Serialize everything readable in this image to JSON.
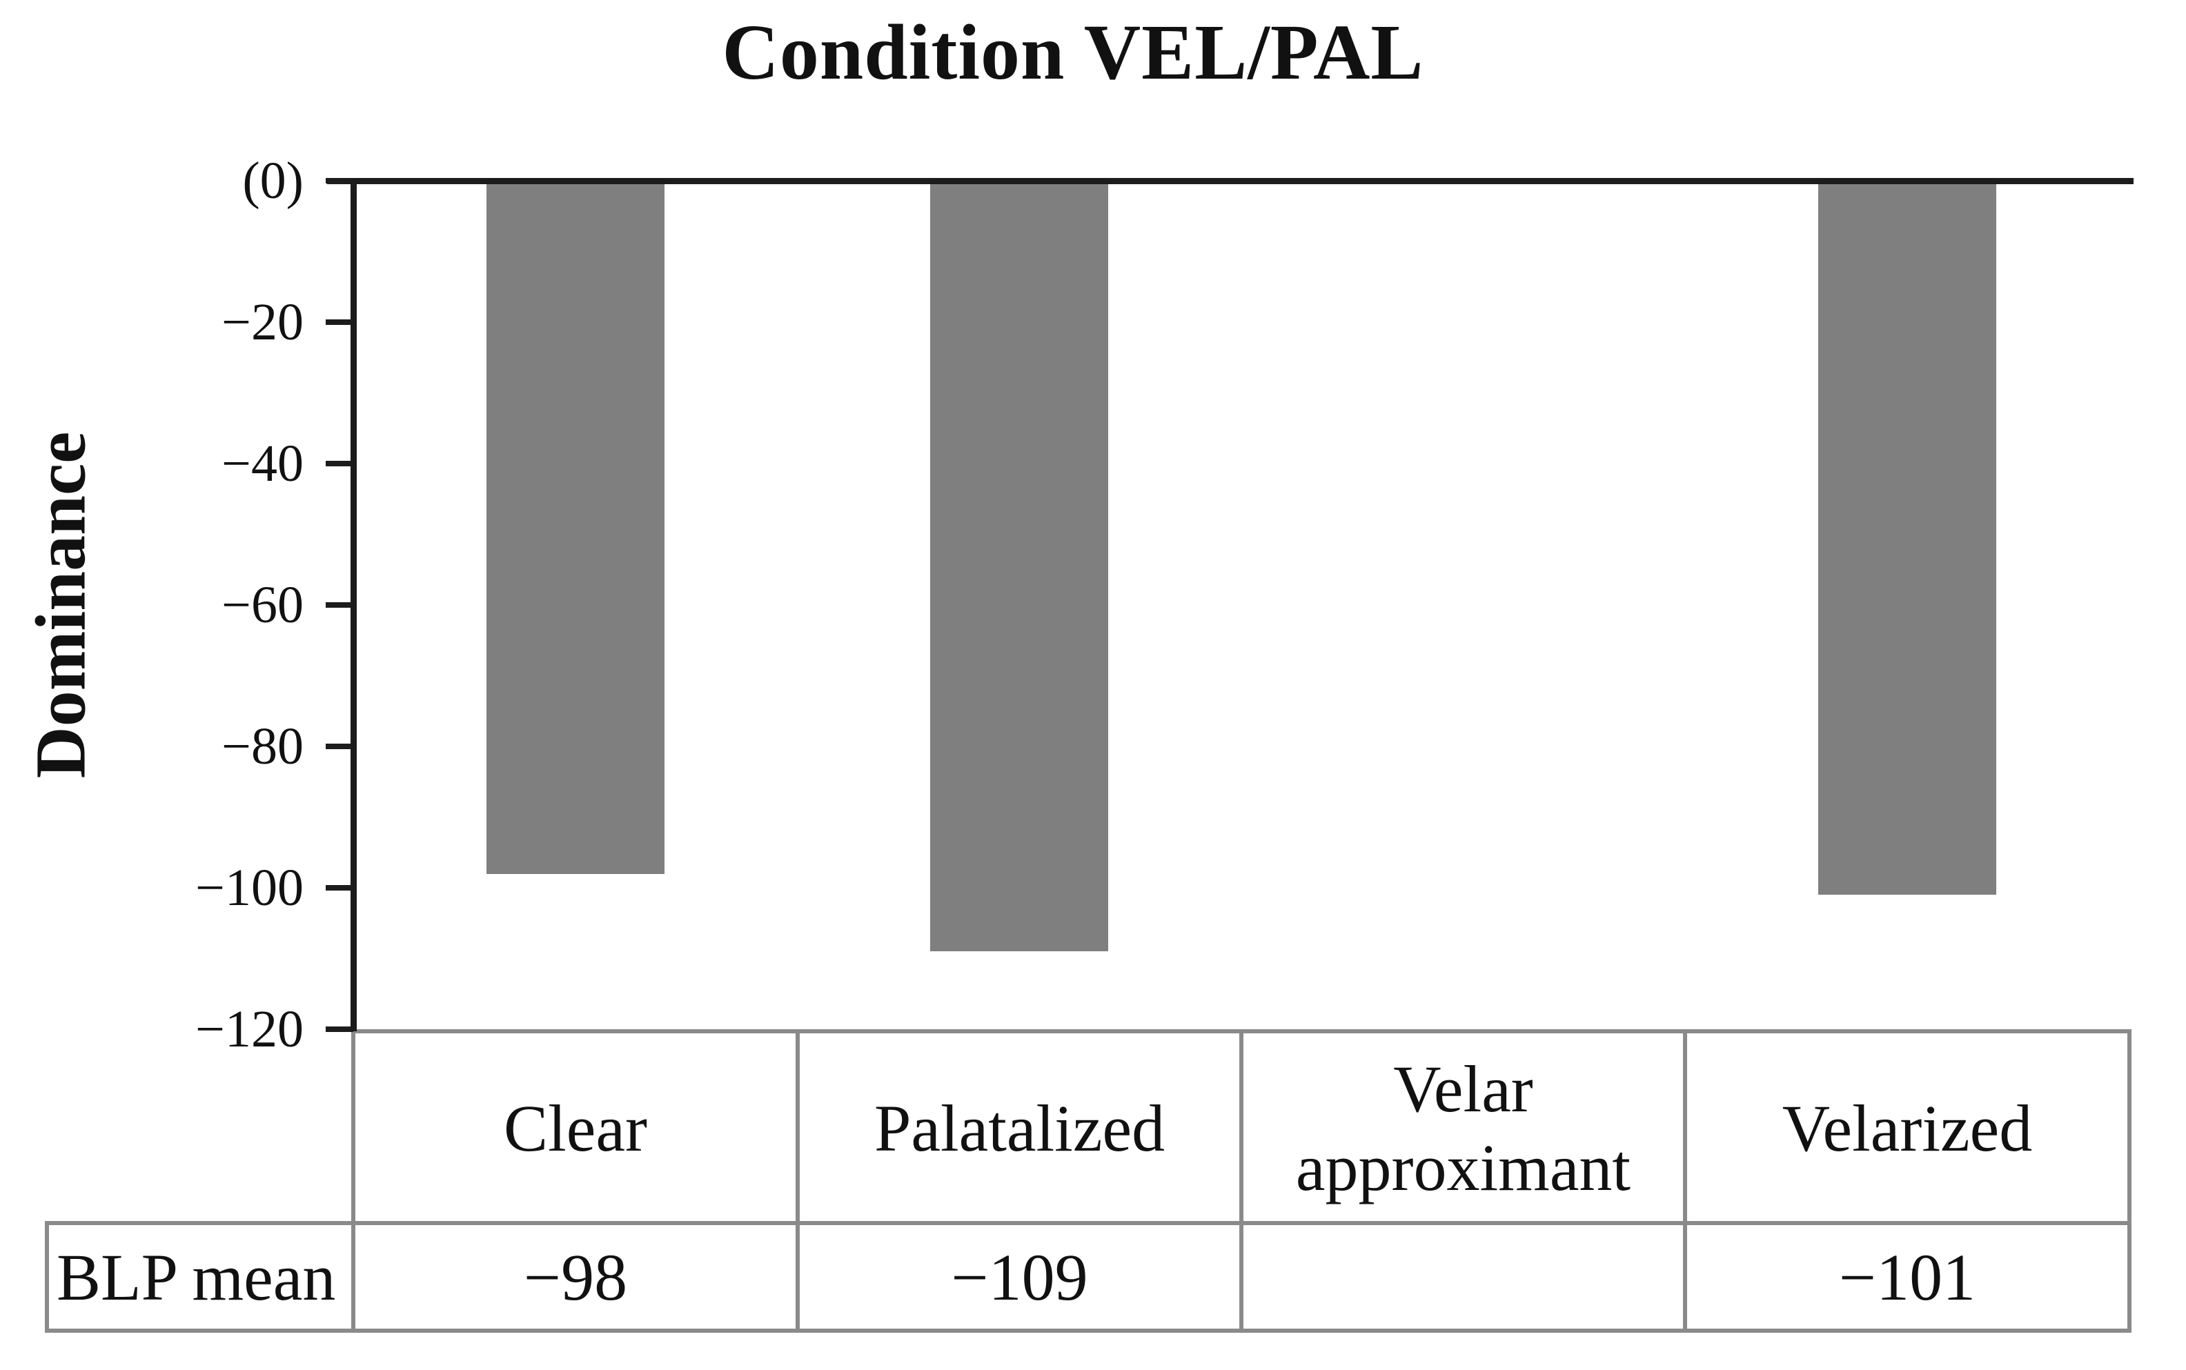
{
  "figure": {
    "title": "Condition VEL/PAL",
    "y_axis": {
      "label": "Dominance",
      "tick_labels": [
        "(0)",
        "−20",
        "−40",
        "−60",
        "−80",
        "−100",
        "−120"
      ]
    },
    "table": {
      "row_header": "BLP mean",
      "columns": [
        {
          "label": "Clear",
          "value": "−98"
        },
        {
          "label": "Palatalized",
          "value": "−109"
        },
        {
          "label": "Velar approximant",
          "value": ""
        },
        {
          "label": "Velarized",
          "value": "−101"
        }
      ]
    }
  },
  "chart_data": {
    "type": "bar",
    "title": "Condition VEL/PAL",
    "xlabel": "",
    "ylabel": "Dominance",
    "categories": [
      "Clear",
      "Palatalized",
      "Velar approximant",
      "Velarized"
    ],
    "series": [
      {
        "name": "BLP mean",
        "values": [
          -98,
          -109,
          null,
          -101
        ]
      }
    ],
    "ylim": [
      -120,
      0
    ],
    "ytick_values": [
      0,
      -20,
      -40,
      -60,
      -80,
      -100,
      -120
    ],
    "bar_color": "#7f7f7f",
    "axis_color": "#1c1c1c",
    "table_border_color": "#8a8a8a",
    "grid": false,
    "legend_position": "none"
  }
}
